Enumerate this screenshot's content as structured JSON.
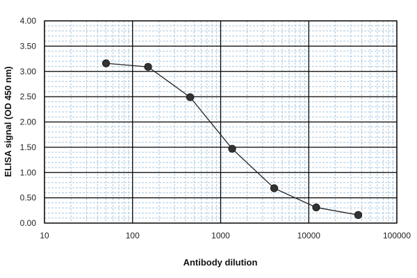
{
  "chart_data": {
    "type": "scatter",
    "xlabel": "Antibody dilution",
    "ylabel": "ELISA signal (OD 450 nm)",
    "x_scale": "log",
    "xlim": [
      10,
      100000
    ],
    "ylim": [
      0,
      4
    ],
    "x_ticks": [
      10,
      100,
      1000,
      10000,
      100000
    ],
    "x_tick_labels": [
      "10",
      "100",
      "1000",
      "10000",
      "100000"
    ],
    "y_ticks": [
      0,
      0.5,
      1,
      1.5,
      2,
      2.5,
      3,
      3.5,
      4
    ],
    "y_tick_labels": [
      "0.00",
      "0.50",
      "1.00",
      "1.50",
      "2.00",
      "2.50",
      "3.00",
      "3.50",
      "4.00"
    ],
    "grid": true,
    "marker": "filled-circle",
    "series": [
      {
        "x": [
          50,
          150,
          450,
          1350,
          4050,
          12150,
          36450
        ],
        "y": [
          3.16,
          3.09,
          2.49,
          1.47,
          0.69,
          0.31,
          0.16
        ]
      }
    ],
    "colors": {
      "major_grid": "#000000",
      "minor_grid": "#a8c8e0",
      "line": "#222222",
      "marker": "#333333"
    }
  }
}
